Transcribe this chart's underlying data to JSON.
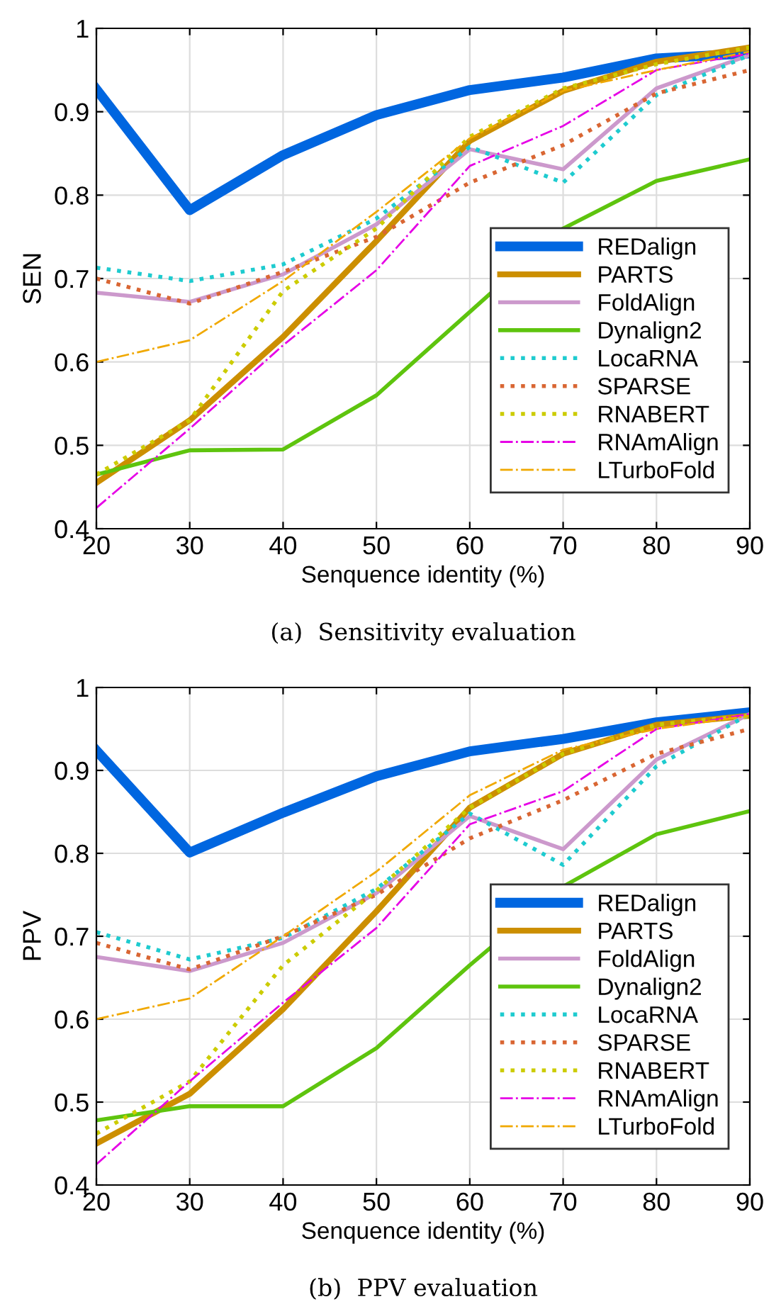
{
  "chart_data": [
    {
      "type": "line",
      "title": "(a)  Sensitivity evaluation",
      "xlabel": "Senquence identity (%)",
      "ylabel": "SEN",
      "x": [
        20,
        30,
        40,
        50,
        60,
        70,
        80,
        90
      ],
      "xlim": [
        20,
        90
      ],
      "xticks": [
        20,
        30,
        40,
        50,
        60,
        70,
        80,
        90
      ],
      "ylim": [
        0.4,
        1
      ],
      "yticks": [
        0.4,
        0.5,
        0.6,
        0.7,
        0.8,
        0.9,
        1
      ],
      "grid": true,
      "legend": "bottom right",
      "series": [
        {
          "name": "REDalign",
          "color": "#0066e0",
          "line_style": "solid",
          "values": [
            0.927,
            0.782,
            0.848,
            0.896,
            0.926,
            0.941,
            0.964,
            0.97
          ]
        },
        {
          "name": "PARTS",
          "color": "#cc8f00",
          "line_style": "solid",
          "values": [
            0.455,
            0.53,
            0.63,
            0.745,
            0.865,
            0.925,
            0.96,
            0.977
          ]
        },
        {
          "name": "FoldAlign",
          "color": "#cc99cc",
          "line_style": "solid",
          "values": [
            0.683,
            0.672,
            0.705,
            0.765,
            0.855,
            0.831,
            0.928,
            0.968
          ]
        },
        {
          "name": "Dynalign2",
          "color": "#5ec40e",
          "line_style": "solid",
          "values": [
            0.465,
            0.494,
            0.495,
            0.56,
            0.66,
            0.76,
            0.817,
            0.843
          ]
        },
        {
          "name": "LocaRNA",
          "color": "#1ecbcf",
          "line_style": "dotted",
          "values": [
            0.713,
            0.697,
            0.717,
            0.772,
            0.858,
            0.815,
            0.92,
            0.968
          ]
        },
        {
          "name": "SPARSE",
          "color": "#d96633",
          "line_style": "dotted",
          "values": [
            0.7,
            0.67,
            0.708,
            0.75,
            0.815,
            0.86,
            0.922,
            0.95
          ]
        },
        {
          "name": "RNABERT",
          "color": "#cccc00",
          "line_style": "dotted",
          "values": [
            0.465,
            0.53,
            0.685,
            0.76,
            0.87,
            0.928,
            0.957,
            0.977
          ]
        },
        {
          "name": "RNAmAlign",
          "color": "#e600e6",
          "line_style": "dashdot",
          "values": [
            0.425,
            0.52,
            0.62,
            0.71,
            0.835,
            0.883,
            0.95,
            0.97
          ]
        },
        {
          "name": "LTurboFold",
          "color": "#f0a800",
          "line_style": "dashdot",
          "values": [
            0.6,
            0.626,
            0.697,
            0.78,
            0.868,
            0.925,
            0.95,
            0.972
          ]
        }
      ]
    },
    {
      "type": "line",
      "title": "(b)  PPV evaluation",
      "xlabel": "Senquence identity (%)",
      "ylabel": "PPV",
      "x": [
        20,
        30,
        40,
        50,
        60,
        70,
        80,
        90
      ],
      "xlim": [
        20,
        90
      ],
      "xticks": [
        20,
        30,
        40,
        50,
        60,
        70,
        80,
        90
      ],
      "ylim": [
        0.4,
        1
      ],
      "yticks": [
        0.4,
        0.5,
        0.6,
        0.7,
        0.8,
        0.9,
        1
      ],
      "grid": true,
      "legend": "bottom right",
      "series": [
        {
          "name": "REDalign",
          "color": "#0066e0",
          "line_style": "solid",
          "values": [
            0.924,
            0.801,
            0.849,
            0.893,
            0.923,
            0.938,
            0.958,
            0.97
          ]
        },
        {
          "name": "PARTS",
          "color": "#cc8f00",
          "line_style": "solid",
          "values": [
            0.45,
            0.51,
            0.612,
            0.73,
            0.855,
            0.92,
            0.955,
            0.966
          ]
        },
        {
          "name": "FoldAlign",
          "color": "#cc99cc",
          "line_style": "solid",
          "values": [
            0.675,
            0.658,
            0.692,
            0.752,
            0.845,
            0.805,
            0.913,
            0.968
          ]
        },
        {
          "name": "Dynalign2",
          "color": "#5ec40e",
          "line_style": "solid",
          "values": [
            0.478,
            0.495,
            0.495,
            0.565,
            0.665,
            0.76,
            0.823,
            0.851
          ]
        },
        {
          "name": "LocaRNA",
          "color": "#1ecbcf",
          "line_style": "dotted",
          "values": [
            0.705,
            0.672,
            0.698,
            0.757,
            0.848,
            0.786,
            0.905,
            0.968
          ]
        },
        {
          "name": "SPARSE",
          "color": "#d96633",
          "line_style": "dotted",
          "values": [
            0.692,
            0.66,
            0.7,
            0.75,
            0.818,
            0.864,
            0.92,
            0.95
          ]
        },
        {
          "name": "RNABERT",
          "color": "#cccc00",
          "line_style": "dotted",
          "values": [
            0.462,
            0.525,
            0.665,
            0.755,
            0.855,
            0.92,
            0.955,
            0.966
          ]
        },
        {
          "name": "RNAmAlign",
          "color": "#e600e6",
          "line_style": "dashdot",
          "values": [
            0.425,
            0.525,
            0.62,
            0.71,
            0.835,
            0.875,
            0.95,
            0.968
          ]
        },
        {
          "name": "LTurboFold",
          "color": "#f0a800",
          "line_style": "dashdot",
          "values": [
            0.6,
            0.625,
            0.7,
            0.778,
            0.87,
            0.925,
            0.95,
            0.966
          ]
        }
      ]
    }
  ]
}
